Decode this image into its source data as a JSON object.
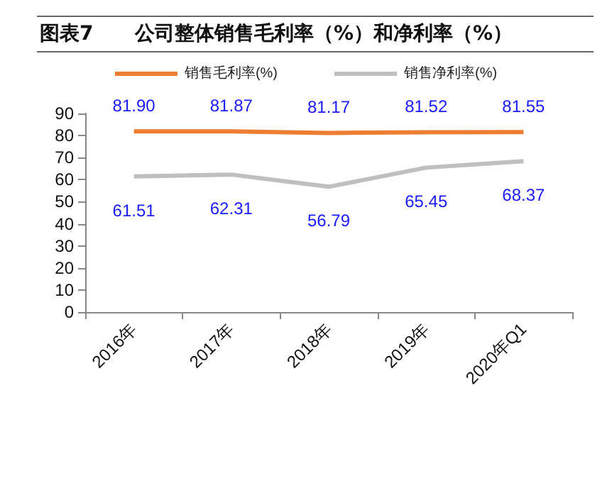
{
  "chart_data": {
    "type": "line",
    "title": "图表7      公司整体销售毛利率（%）和净利率（%）",
    "categories": [
      "2016年",
      "2017年",
      "2018年",
      "2019年",
      "2020年Q1"
    ],
    "series": [
      {
        "name": "销售毛利率(%)",
        "color": "#ed7d31",
        "values": [
          81.9,
          81.87,
          81.17,
          81.52,
          81.55
        ],
        "value_labels": [
          "81.90",
          "81.87",
          "81.17",
          "81.52",
          "81.55"
        ]
      },
      {
        "name": "销售净利率(%)",
        "color": "#bfbfbf",
        "values": [
          61.51,
          62.31,
          56.79,
          65.45,
          68.37
        ],
        "value_labels": [
          "61.51",
          "62.31",
          "56.79",
          "65.45",
          "68.37"
        ]
      }
    ],
    "ylim": [
      0,
      90
    ],
    "yticks": [
      0,
      10,
      20,
      30,
      40,
      50,
      60,
      70,
      80,
      90
    ],
    "grid": false,
    "legend": "top",
    "marker": "none",
    "line_style": "solid"
  }
}
